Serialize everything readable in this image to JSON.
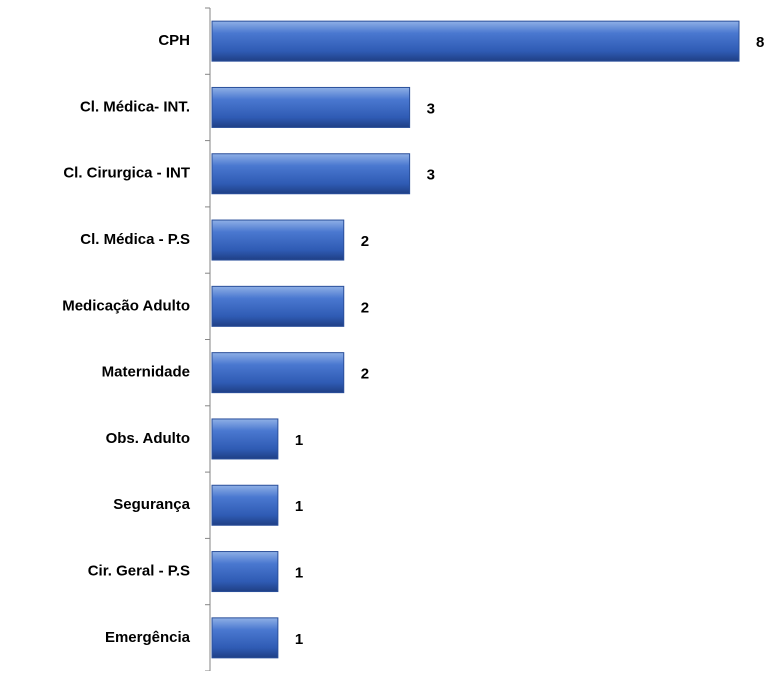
{
  "chart_data": {
    "type": "bar",
    "orientation": "horizontal",
    "categories": [
      "CPH",
      "Cl. Médica-  INT.",
      "Cl. Cirurgica - INT",
      "Cl. Médica - P.S",
      "Medicação Adulto",
      "Maternidade",
      "Obs. Adulto",
      "Segurança",
      "Cir. Geral - P.S",
      "Emergência"
    ],
    "values": [
      8,
      3,
      3,
      2,
      2,
      2,
      1,
      1,
      1,
      1
    ],
    "color": "#4472c4",
    "xlim": [
      0,
      8
    ]
  }
}
